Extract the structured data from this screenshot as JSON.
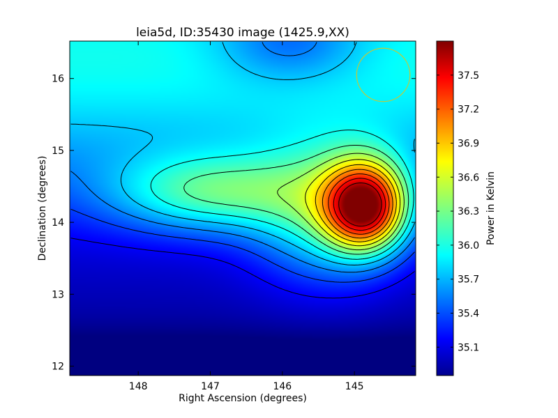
{
  "chart_data": {
    "type": "heatmap",
    "title": "leia5d, ID:35430 image (1425.9,XX)",
    "xlabel": "Right Ascension (degrees)",
    "ylabel": "Declination (degrees)",
    "xlim": [
      148.95,
      144.15
    ],
    "ylim": [
      11.87,
      16.52
    ],
    "x_ticks": [
      148,
      147,
      146,
      145
    ],
    "x_tick_labels": [
      "148",
      "147",
      "146",
      "145"
    ],
    "y_ticks": [
      12,
      13,
      14,
      15,
      16
    ],
    "y_tick_labels": [
      "12",
      "13",
      "14",
      "15",
      "16"
    ],
    "colorbar": {
      "label": "Power in Kelvin",
      "range": [
        34.85,
        37.8
      ],
      "ticks": [
        35.1,
        35.4,
        35.7,
        36.0,
        36.3,
        36.6,
        36.9,
        37.2,
        37.5
      ],
      "tick_labels": [
        "35.1",
        "35.4",
        "35.7",
        "36.0",
        "36.3",
        "36.6",
        "36.9",
        "37.2",
        "37.5"
      ],
      "colormap": "jet"
    },
    "peak": {
      "ra": 144.85,
      "dec": 14.22,
      "value": 37.75
    },
    "beam_circle": {
      "ra": 144.6,
      "dec": 16.05,
      "radius_deg": 0.37,
      "color": "#c8c832"
    },
    "contours": "black lines",
    "grid": false
  }
}
